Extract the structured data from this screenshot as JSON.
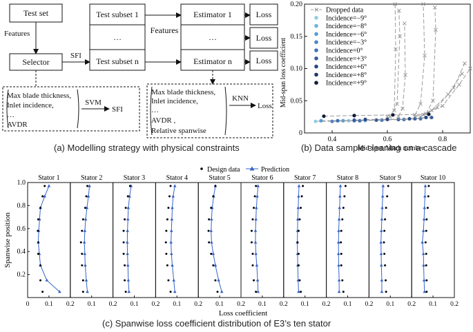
{
  "panel_a": {
    "caption": "(a) Modelling strategy with physical constraints",
    "test_set": "Test set",
    "features_left": "Features",
    "selector": "Selector",
    "sfi_arrow": "SFI",
    "subsets": [
      "Test subset 1",
      "…",
      "Test subset n"
    ],
    "features_mid": "Features",
    "estimators": [
      "Estimator 1",
      "…",
      "Estimator n"
    ],
    "loss_boxes": [
      "Loss",
      "Loss",
      "Loss"
    ],
    "svm_box": {
      "lines": [
        "Max blade thickness,",
        "Inlet incidence,",
        "…",
        "AVDR"
      ],
      "model": "SVM",
      "output": "SFI"
    },
    "knn_box": {
      "lines": [
        "Max blade thickness,",
        "Inlet incidence,",
        "…",
        "AVDR ,",
        "Relative spanwise"
      ],
      "model": "KNN",
      "output": "Loss"
    }
  },
  "panel_b": {
    "caption": "(b) Data sample cleaning on a cascade",
    "colors": {
      "dropped": "#9a9a9a"
    },
    "chart_data": {
      "type": "scatter",
      "xlabel": "Mid-span Mach number",
      "ylabel": "Mid-span loss coefficient",
      "xlim": [
        0.3,
        0.9
      ],
      "ylim": [
        0,
        0.2
      ],
      "xticks": [
        "0.4",
        "0.6",
        "0.8"
      ],
      "yticks": [
        "0",
        "0.05",
        "0.10",
        "0.15",
        "0.20"
      ],
      "legend": [
        "Dropped data",
        "Incidence=−9°",
        "Incidence=−8°",
        "Incidence=−6°",
        "Incidence=−3°",
        "Incidence=0°",
        "Incidence=+3°",
        "Incidence=+6°",
        "Incidence=+8°",
        "Incidence=+9°"
      ],
      "legend_colors": [
        "#9a9a9a",
        "#93cbe6",
        "#6fb3dc",
        "#5b9bd1",
        "#4d86c4",
        "#4070b3",
        "#355c9c",
        "#2b4982",
        "#1f3566",
        "#101c38"
      ],
      "clean_series": [
        {
          "name": "Incidence=−9°",
          "x": [
            0.34,
            0.4,
            0.46,
            0.52
          ],
          "y": [
            0.018,
            0.018,
            0.019,
            0.019
          ]
        },
        {
          "name": "Incidence=−6°",
          "x": [
            0.36,
            0.44,
            0.52,
            0.58
          ],
          "y": [
            0.019,
            0.019,
            0.02,
            0.02
          ]
        },
        {
          "name": "Incidence=−3°",
          "x": [
            0.4,
            0.48,
            0.56,
            0.64
          ],
          "y": [
            0.018,
            0.019,
            0.02,
            0.021
          ]
        },
        {
          "name": "Incidence=0°",
          "x": [
            0.42,
            0.5,
            0.58,
            0.66,
            0.72
          ],
          "y": [
            0.019,
            0.019,
            0.02,
            0.021,
            0.022
          ]
        },
        {
          "name": "Incidence=+3°",
          "x": [
            0.48,
            0.56,
            0.64,
            0.7,
            0.76
          ],
          "y": [
            0.02,
            0.02,
            0.021,
            0.022,
            0.024
          ]
        },
        {
          "name": "Incidence=+6°",
          "x": [
            0.52,
            0.6,
            0.68,
            0.74
          ],
          "y": [
            0.021,
            0.021,
            0.022,
            0.024
          ]
        },
        {
          "name": "Incidence=+9°",
          "x": [
            0.37,
            0.48,
            0.62,
            0.75
          ],
          "y": [
            0.026,
            0.027,
            0.028,
            0.029
          ]
        }
      ],
      "dropped_series": [
        {
          "x": [
            0.6,
            0.625,
            0.63,
            0.628
          ],
          "y": [
            0.025,
            0.035,
            0.13,
            0.2
          ]
        },
        {
          "x": [
            0.61,
            0.635,
            0.645,
            0.642
          ],
          "y": [
            0.025,
            0.045,
            0.15,
            0.19
          ]
        },
        {
          "x": [
            0.64,
            0.655,
            0.665,
            0.662
          ],
          "y": [
            0.026,
            0.038,
            0.09,
            0.17
          ]
        },
        {
          "x": [
            0.7,
            0.72,
            0.735,
            0.73
          ],
          "y": [
            0.028,
            0.045,
            0.12,
            0.2
          ]
        },
        {
          "x": [
            0.74,
            0.765,
            0.775,
            0.772
          ],
          "y": [
            0.03,
            0.05,
            0.16,
            0.195
          ]
        },
        {
          "x": [
            0.72,
            0.78,
            0.84,
            0.88
          ],
          "y": [
            0.025,
            0.04,
            0.07,
            0.108
          ]
        },
        {
          "x": [
            0.7,
            0.76,
            0.82,
            0.87
          ],
          "y": [
            0.025,
            0.035,
            0.06,
            0.092
          ]
        },
        {
          "x": [
            0.73,
            0.8,
            0.86,
            0.9
          ],
          "y": [
            0.028,
            0.042,
            0.075,
            0.1
          ]
        }
      ]
    }
  },
  "panel_c": {
    "caption": "(c) Spanwise loss coefficient distribution of E3’s ten stator",
    "colors": {
      "prediction": "#3563c9",
      "design": "#000000"
    },
    "chart_data": {
      "type": "line",
      "xlabel": "Loss coefficient",
      "ylabel": "Spanwise position",
      "legend": [
        "Design data",
        "Prediction"
      ],
      "xlim": [
        0,
        0.2
      ],
      "ylim": [
        0,
        1.0
      ],
      "yticks": [
        "0.2",
        "0.4",
        "0.6",
        "0.8",
        "1.0"
      ],
      "xticks_first": [
        "0",
        "0.1",
        "0.2"
      ],
      "xticks_other": [
        "0.1",
        "0.2"
      ],
      "stators": [
        {
          "name": "Stator 1",
          "spans": [
            0.05,
            0.15,
            0.28,
            0.38,
            0.48,
            0.58,
            0.68,
            0.78,
            0.88,
            0.97
          ],
          "prediction": [
            0.15,
            0.09,
            0.06,
            0.055,
            0.05,
            0.052,
            0.056,
            0.06,
            0.08,
            0.1
          ],
          "design": [
            0.07,
            0.06,
            0.06,
            0.05,
            0.05,
            0.048,
            0.05,
            0.06,
            0.07,
            0.08
          ]
        },
        {
          "name": "Stator 2",
          "spans": [
            0.05,
            0.15,
            0.28,
            0.38,
            0.48,
            0.58,
            0.68,
            0.78,
            0.88,
            0.97
          ],
          "prediction": [
            0.08,
            0.075,
            0.07,
            0.068,
            0.066,
            0.068,
            0.072,
            0.078,
            0.085,
            0.09
          ],
          "design": [
            0.06,
            0.06,
            0.055,
            0.055,
            0.05,
            0.055,
            0.06,
            0.07,
            0.075,
            0.08
          ]
        },
        {
          "name": "Stator 3",
          "spans": [
            0.05,
            0.15,
            0.28,
            0.38,
            0.48,
            0.58,
            0.68,
            0.78,
            0.88,
            0.97
          ],
          "prediction": [
            0.075,
            0.072,
            0.07,
            0.068,
            0.067,
            0.068,
            0.07,
            0.072,
            0.078,
            0.085
          ],
          "design": [
            0.06,
            0.055,
            0.055,
            0.05,
            0.05,
            0.05,
            0.055,
            0.06,
            0.07,
            0.08
          ]
        },
        {
          "name": "Stator 4",
          "spans": [
            0.05,
            0.15,
            0.28,
            0.38,
            0.48,
            0.58,
            0.68,
            0.78,
            0.88,
            0.97
          ],
          "prediction": [
            0.09,
            0.085,
            0.078,
            0.074,
            0.072,
            0.074,
            0.076,
            0.078,
            0.082,
            0.09
          ],
          "design": [
            0.07,
            0.06,
            0.055,
            0.05,
            0.048,
            0.05,
            0.055,
            0.06,
            0.065,
            0.07
          ]
        },
        {
          "name": "Stator 5",
          "spans": [
            0.05,
            0.15,
            0.28,
            0.38,
            0.48,
            0.58,
            0.68,
            0.78,
            0.88,
            0.97
          ],
          "prediction": [
            0.11,
            0.095,
            0.08,
            0.07,
            0.062,
            0.06,
            0.062,
            0.065,
            0.072,
            0.08
          ],
          "design": [
            0.09,
            0.08,
            0.07,
            0.06,
            0.05,
            0.048,
            0.05,
            0.06,
            0.07,
            0.08
          ]
        },
        {
          "name": "Stator 6",
          "spans": [
            0.05,
            0.15,
            0.28,
            0.38,
            0.48,
            0.58,
            0.68,
            0.78,
            0.88,
            0.97
          ],
          "prediction": [
            0.08,
            0.078,
            0.074,
            0.07,
            0.068,
            0.068,
            0.07,
            0.072,
            0.076,
            0.08
          ],
          "design": [
            0.07,
            0.06,
            0.055,
            0.055,
            0.05,
            0.05,
            0.055,
            0.06,
            0.065,
            0.07
          ]
        },
        {
          "name": "Stator 7",
          "spans": [
            0.05,
            0.15,
            0.28,
            0.38,
            0.48,
            0.58,
            0.68,
            0.78,
            0.88,
            0.97
          ],
          "prediction": [
            0.07,
            0.068,
            0.066,
            0.065,
            0.064,
            0.065,
            0.066,
            0.068,
            0.07,
            0.072
          ],
          "design": [
            0.08,
            0.075,
            0.07,
            0.07,
            0.065,
            0.07,
            0.075,
            0.08,
            0.085,
            0.09
          ]
        },
        {
          "name": "Stator 8",
          "spans": [
            0.05,
            0.15,
            0.28,
            0.38,
            0.48,
            0.58,
            0.68,
            0.78,
            0.88,
            0.97
          ],
          "prediction": [
            0.06,
            0.06,
            0.058,
            0.057,
            0.057,
            0.058,
            0.06,
            0.062,
            0.064,
            0.066
          ],
          "design": [
            0.08,
            0.075,
            0.07,
            0.07,
            0.068,
            0.07,
            0.075,
            0.08,
            0.085,
            0.09
          ]
        },
        {
          "name": "Stator 9",
          "spans": [
            0.05,
            0.15,
            0.28,
            0.38,
            0.48,
            0.58,
            0.68,
            0.78,
            0.88,
            0.97
          ],
          "prediction": [
            0.06,
            0.06,
            0.058,
            0.057,
            0.056,
            0.058,
            0.06,
            0.062,
            0.064,
            0.066
          ],
          "design": [
            0.08,
            0.078,
            0.075,
            0.072,
            0.07,
            0.072,
            0.075,
            0.08,
            0.085,
            0.09
          ]
        },
        {
          "name": "Stator 10",
          "spans": [
            0.05,
            0.15,
            0.28,
            0.38,
            0.48,
            0.58,
            0.68,
            0.78,
            0.88,
            0.97
          ],
          "prediction": [
            0.06,
            0.058,
            0.056,
            0.055,
            0.05,
            0.055,
            0.058,
            0.06,
            0.062,
            0.064
          ],
          "design": [
            0.07,
            0.07,
            0.068,
            0.068,
            0.065,
            0.068,
            0.07,
            0.075,
            0.078,
            0.08
          ]
        }
      ]
    }
  }
}
